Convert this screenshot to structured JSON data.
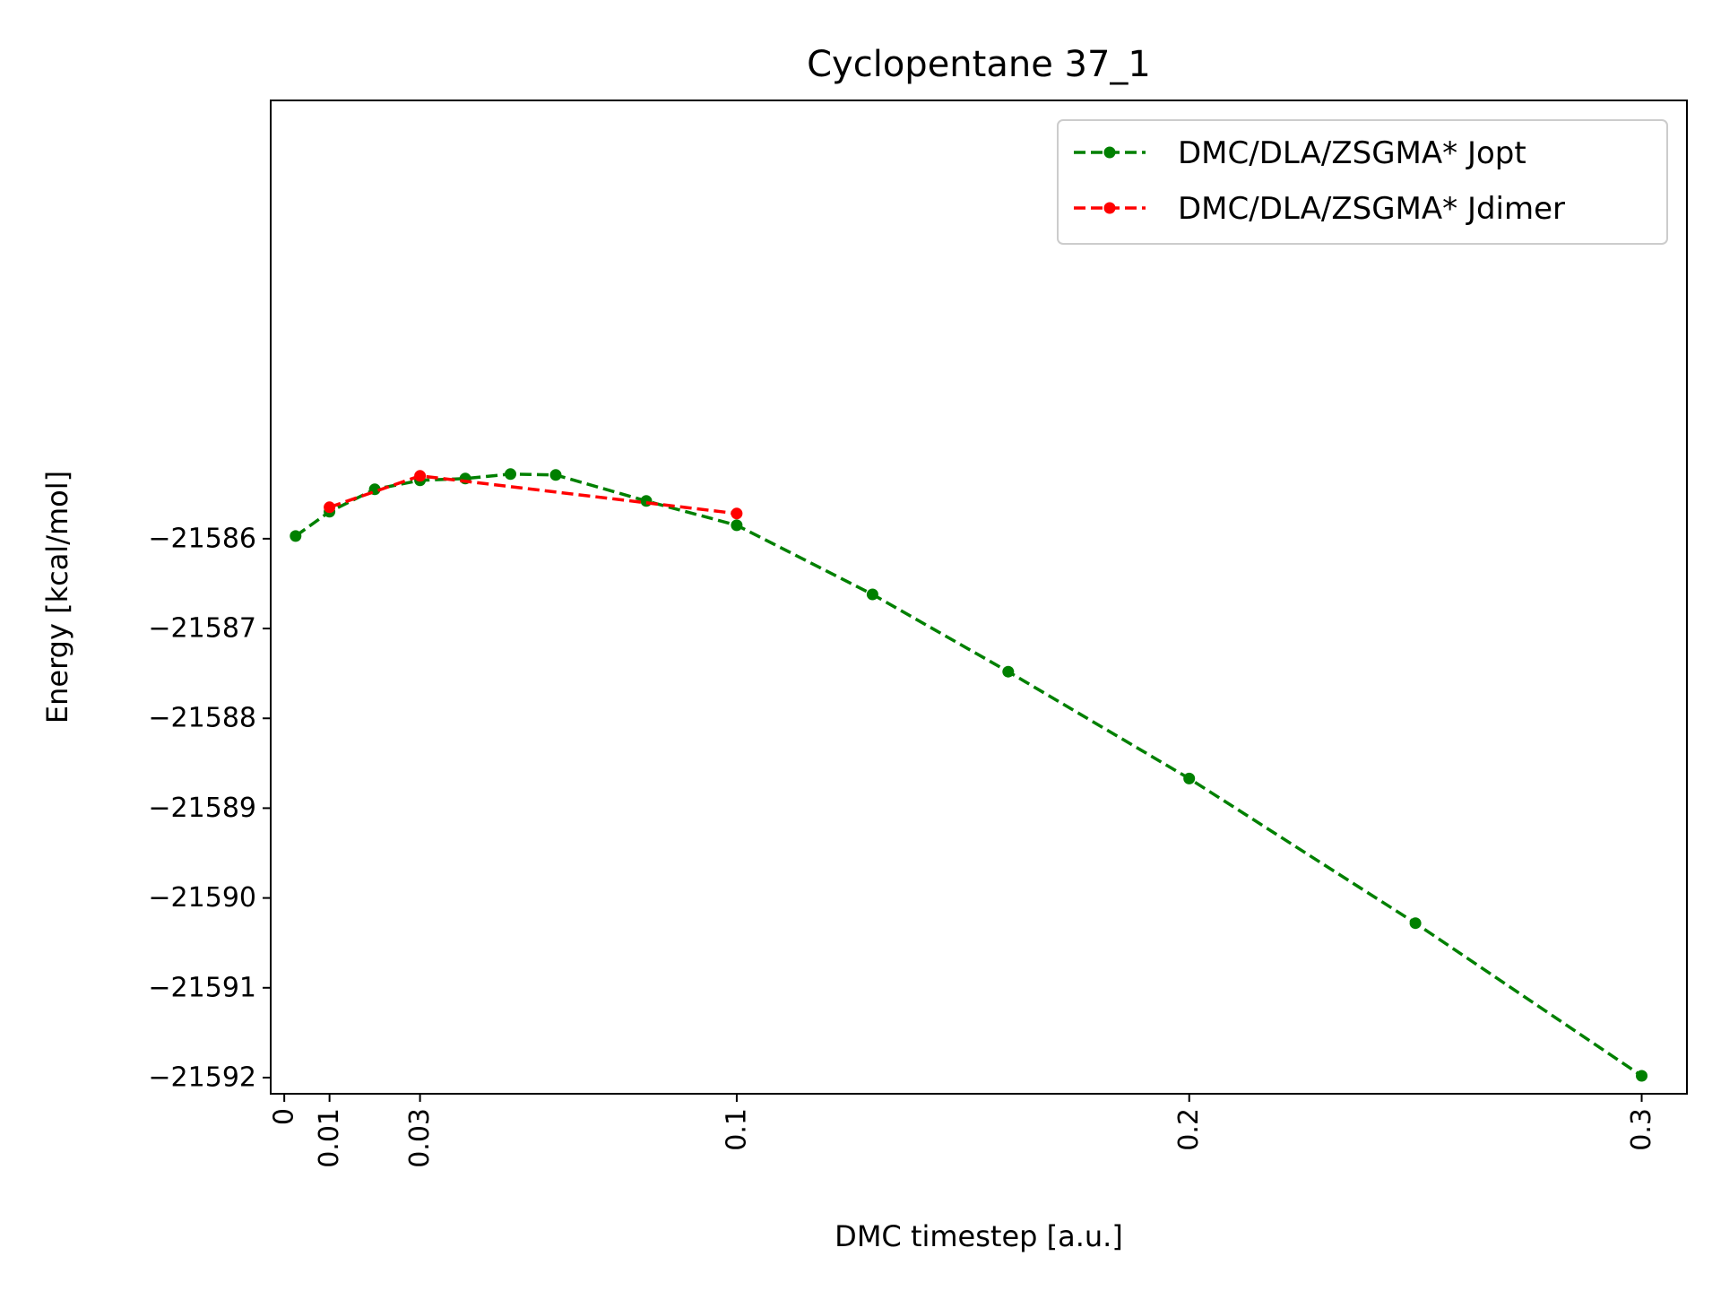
{
  "chart_data": {
    "type": "line",
    "title": "Cyclopentane 37_1",
    "xlabel": "DMC timestep [a.u.]",
    "ylabel": "Energy [kcal/mol]",
    "xlim": [
      -0.003,
      0.31
    ],
    "ylim": [
      -21592.18,
      -21581.12
    ],
    "xticks": [
      {
        "value": 0,
        "label": "0"
      },
      {
        "value": 0.01,
        "label": "0.01"
      },
      {
        "value": 0.03,
        "label": "0.03"
      },
      {
        "value": 0.1,
        "label": "0.1"
      },
      {
        "value": 0.2,
        "label": "0.2"
      },
      {
        "value": 0.3,
        "label": "0.3"
      }
    ],
    "yticks": [
      {
        "value": -21586,
        "label": "−21586"
      },
      {
        "value": -21587,
        "label": "−21587"
      },
      {
        "value": -21588,
        "label": "−21588"
      },
      {
        "value": -21589,
        "label": "−21589"
      },
      {
        "value": -21590,
        "label": "−21590"
      },
      {
        "value": -21591,
        "label": "−21591"
      },
      {
        "value": -21592,
        "label": "−21592"
      }
    ],
    "grid": false,
    "legend_position": "top-right",
    "series": [
      {
        "name": "DMC/DLA/ZSGMA* Jopt",
        "color": "#008000",
        "style": "dashed",
        "marker": "circle",
        "x": [
          0.0025,
          0.01,
          0.02,
          0.03,
          0.04,
          0.05,
          0.06,
          0.08,
          0.1,
          0.13,
          0.16,
          0.2,
          0.25,
          0.3
        ],
        "y": [
          -21585.97,
          -21585.7,
          -21585.45,
          -21585.35,
          -21585.33,
          -21585.28,
          -21585.29,
          -21585.58,
          -21585.85,
          -21586.62,
          -21587.48,
          -21588.67,
          -21590.28,
          -21591.98
        ]
      },
      {
        "name": "DMC/DLA/ZSGMA* Jdimer",
        "color": "#ff0000",
        "style": "dashed",
        "marker": "circle",
        "x": [
          0.01,
          0.03,
          0.1
        ],
        "y": [
          -21585.65,
          -21585.3,
          -21585.72
        ]
      }
    ]
  }
}
